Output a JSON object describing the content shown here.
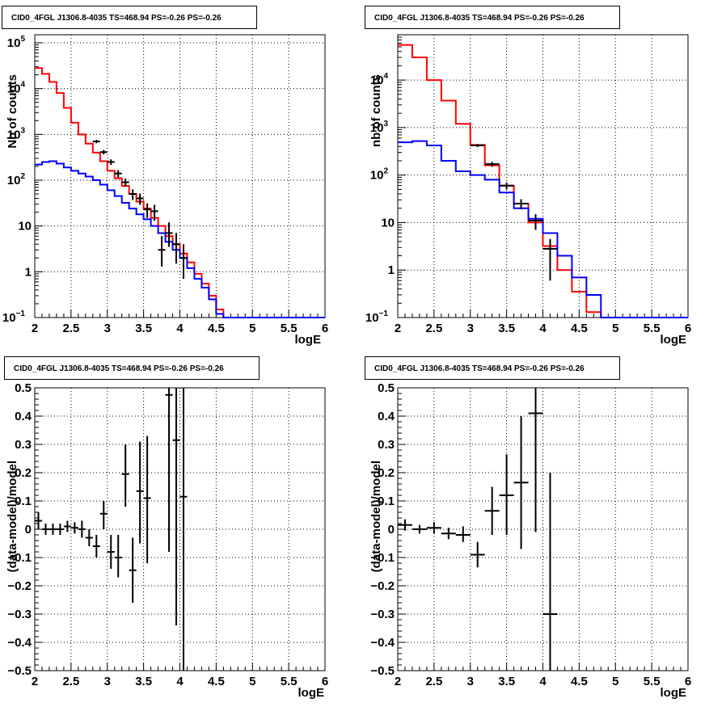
{
  "chart_data": [
    {
      "type": "line",
      "title": "CID0_4FGL J1306.8-4035 TS=468.94 PS=-0.26 PS=-0.26",
      "xlabel": "logE",
      "ylabel": "Nb of counts",
      "xlim": [
        2,
        6
      ],
      "ylim": [
        0.1,
        150000
      ],
      "yscale": "log",
      "grid": true,
      "x_ticks": [
        "2",
        "2.5",
        "3",
        "3.5",
        "4",
        "4.5",
        "5",
        "5.5",
        "6"
      ],
      "y_ticks": [
        {
          "value": 0.1,
          "label": "10",
          "sup": "−1"
        },
        {
          "value": 1,
          "label": "1"
        },
        {
          "value": 10,
          "label": "10"
        },
        {
          "value": 100,
          "label": "10",
          "sup": "2"
        },
        {
          "value": 1000,
          "label": "10",
          "sup": "3"
        },
        {
          "value": 10000,
          "label": "10",
          "sup": "4"
        },
        {
          "value": 100000,
          "label": "10",
          "sup": "5"
        }
      ],
      "series": [
        {
          "color": "#ff0000",
          "kind": "step",
          "bin_edges": [
            2.0,
            2.1,
            2.2,
            2.3,
            2.4,
            2.5,
            2.6,
            2.7,
            2.8,
            2.9,
            3.0,
            3.1,
            3.2,
            3.3,
            3.4,
            3.5,
            3.6,
            3.7,
            3.8,
            3.9,
            4.0,
            4.1,
            4.2,
            4.3,
            4.4,
            4.5,
            4.6,
            4.7,
            4.8,
            4.9,
            5.0,
            5.1,
            5.2,
            5.3,
            5.4,
            5.5,
            5.6,
            5.7,
            5.8,
            5.9,
            6.0
          ],
          "values": [
            28000,
            21000,
            14000,
            8000,
            3800,
            1800,
            1000,
            630,
            400,
            260,
            160,
            110,
            75,
            50,
            34,
            24,
            15,
            10,
            6,
            4,
            2.5,
            1.6,
            0.9,
            0.55,
            0.3,
            0.15,
            0.1,
            0.1,
            0.1,
            0.1,
            0.1,
            0.1,
            0.1,
            0.1,
            0.1,
            0.1,
            0.1,
            0.1,
            0.1,
            0.1
          ]
        },
        {
          "color": "#0000ff",
          "kind": "step",
          "bin_edges": [
            2.0,
            2.1,
            2.2,
            2.3,
            2.4,
            2.5,
            2.6,
            2.7,
            2.8,
            2.9,
            3.0,
            3.1,
            3.2,
            3.3,
            3.4,
            3.5,
            3.6,
            3.7,
            3.8,
            3.9,
            4.0,
            4.1,
            4.2,
            4.3,
            4.4,
            4.5,
            4.6,
            4.7,
            4.8,
            4.9,
            5.0,
            5.1,
            5.2,
            5.3,
            5.4,
            5.5,
            5.6,
            5.7,
            5.8,
            5.9,
            6.0
          ],
          "values": [
            220,
            250,
            260,
            230,
            190,
            160,
            140,
            120,
            100,
            80,
            60,
            45,
            32,
            24,
            18,
            14,
            10,
            7,
            4.5,
            3,
            2,
            1.2,
            0.7,
            0.45,
            0.25,
            0.12,
            0.1,
            0.1,
            0.1,
            0.1,
            0.1,
            0.1,
            0.1,
            0.1,
            0.1,
            0.1,
            0.1,
            0.1,
            0.1,
            0.1
          ]
        },
        {
          "color": "#000000",
          "kind": "errorbar",
          "points": [
            {
              "x": 2.85,
              "xerr": 0.05,
              "y": 700,
              "ylo": 640,
              "yhi": 760
            },
            {
              "x": 2.95,
              "xerr": 0.05,
              "y": 410,
              "ylo": 365,
              "yhi": 455
            },
            {
              "x": 3.05,
              "xerr": 0.05,
              "y": 250,
              "ylo": 215,
              "yhi": 285
            },
            {
              "x": 3.15,
              "xerr": 0.05,
              "y": 140,
              "ylo": 115,
              "yhi": 165
            },
            {
              "x": 3.25,
              "xerr": 0.05,
              "y": 90,
              "ylo": 72,
              "yhi": 108
            },
            {
              "x": 3.35,
              "xerr": 0.05,
              "y": 50,
              "ylo": 37,
              "yhi": 63
            },
            {
              "x": 3.45,
              "xerr": 0.05,
              "y": 40,
              "ylo": 29,
              "yhi": 51
            },
            {
              "x": 3.55,
              "xerr": 0.05,
              "y": 23,
              "ylo": 15,
              "yhi": 31
            },
            {
              "x": 3.65,
              "xerr": 0.05,
              "y": 21,
              "ylo": 13,
              "yhi": 29
            },
            {
              "x": 3.75,
              "xerr": 0.05,
              "y": 3,
              "ylo": 1.3,
              "yhi": 6
            },
            {
              "x": 3.85,
              "xerr": 0.05,
              "y": 7,
              "ylo": 3.5,
              "yhi": 12
            },
            {
              "x": 3.95,
              "xerr": 0.05,
              "y": 4,
              "ylo": 1.5,
              "yhi": 7
            },
            {
              "x": 4.05,
              "xerr": 0.05,
              "y": 2,
              "ylo": 0.7,
              "yhi": 4
            }
          ]
        }
      ]
    },
    {
      "type": "line",
      "title": "CID0_4FGL J1306.8-4035 TS=468.94 PS=-0.26 PS=-0.26",
      "xlabel": "logE",
      "ylabel": "nb of counts",
      "xlim": [
        2,
        6
      ],
      "ylim": [
        0.1,
        90000
      ],
      "yscale": "log",
      "grid": true,
      "x_ticks": [
        "2",
        "2.5",
        "3",
        "3.5",
        "4",
        "4.5",
        "5",
        "5.5",
        "6"
      ],
      "y_ticks": [
        {
          "value": 0.1,
          "label": "10",
          "sup": "−1"
        },
        {
          "value": 1,
          "label": "1"
        },
        {
          "value": 10,
          "label": "10"
        },
        {
          "value": 100,
          "label": "10",
          "sup": "2"
        },
        {
          "value": 1000,
          "label": "10",
          "sup": "3"
        },
        {
          "value": 10000,
          "label": "10",
          "sup": "4"
        }
      ],
      "series": [
        {
          "color": "#ff0000",
          "kind": "step",
          "bin_edges": [
            2.0,
            2.2,
            2.4,
            2.6,
            2.8,
            3.0,
            3.2,
            3.4,
            3.6,
            3.8,
            4.0,
            4.2,
            4.4,
            4.6,
            4.8,
            5.0,
            5.2,
            5.4,
            5.6,
            5.8,
            6.0
          ],
          "values": [
            55000,
            30000,
            10000,
            3700,
            1200,
            430,
            160,
            60,
            25,
            10,
            3.2,
            1.0,
            0.35,
            0.13,
            0.1,
            0.1,
            0.1,
            0.1,
            0.1,
            0.1
          ]
        },
        {
          "color": "#0000ff",
          "kind": "step",
          "bin_edges": [
            2.0,
            2.2,
            2.4,
            2.6,
            2.8,
            3.0,
            3.2,
            3.4,
            3.6,
            3.8,
            4.0,
            4.2,
            4.4,
            4.6,
            4.8,
            5.0,
            5.2,
            5.4,
            5.6,
            5.8,
            6.0
          ],
          "values": [
            490,
            520,
            420,
            200,
            120,
            100,
            80,
            43,
            20,
            12,
            6,
            2,
            0.7,
            0.3,
            0.1,
            0.1,
            0.1,
            0.1,
            0.1,
            0.1
          ]
        },
        {
          "color": "#000000",
          "kind": "errorbar",
          "points": [
            {
              "x": 3.1,
              "xerr": 0.1,
              "y": 420,
              "ylo": 390,
              "yhi": 450
            },
            {
              "x": 3.3,
              "xerr": 0.1,
              "y": 170,
              "ylo": 150,
              "yhi": 190
            },
            {
              "x": 3.5,
              "xerr": 0.1,
              "y": 60,
              "ylo": 50,
              "yhi": 70
            },
            {
              "x": 3.7,
              "xerr": 0.1,
              "y": 25,
              "ylo": 19,
              "yhi": 31
            },
            {
              "x": 3.9,
              "xerr": 0.1,
              "y": 11,
              "ylo": 7,
              "yhi": 15
            },
            {
              "x": 4.1,
              "xerr": 0.1,
              "y": 2.8,
              "ylo": 0.6,
              "yhi": 4.5
            }
          ]
        }
      ]
    },
    {
      "type": "scatter",
      "title": "CID0_4FGL J1306.8-4035 TS=468.94 PS=-0.26 PS=-0.26",
      "xlabel": "logE",
      "ylabel": "(data-model)/model",
      "xlim": [
        2,
        6
      ],
      "ylim": [
        -0.5,
        0.5
      ],
      "yscale": "linear",
      "grid": true,
      "x_ticks": [
        "2",
        "2.5",
        "3",
        "3.5",
        "4",
        "4.5",
        "5",
        "5.5",
        "6"
      ],
      "y_ticks": [
        {
          "value": -0.5,
          "label": "−0.5"
        },
        {
          "value": -0.4,
          "label": "−0.4"
        },
        {
          "value": -0.3,
          "label": "−0.3"
        },
        {
          "value": -0.2,
          "label": "−0.2"
        },
        {
          "value": -0.1,
          "label": "−0.1"
        },
        {
          "value": 0,
          "label": "0"
        },
        {
          "value": 0.1,
          "label": "0.1"
        },
        {
          "value": 0.2,
          "label": "0.2"
        },
        {
          "value": 0.3,
          "label": "0.3"
        },
        {
          "value": 0.4,
          "label": "0.4"
        },
        {
          "value": 0.5,
          "label": "0.5"
        }
      ],
      "series": [
        {
          "color": "#000000",
          "kind": "errorbar",
          "points": [
            {
              "x": 2.05,
              "xerr": 0.05,
              "y": 0.03,
              "ylo": 0.0,
              "yhi": 0.06
            },
            {
              "x": 2.15,
              "xerr": 0.05,
              "y": 0.0,
              "ylo": -0.02,
              "yhi": 0.02
            },
            {
              "x": 2.25,
              "xerr": 0.05,
              "y": 0.0,
              "ylo": -0.02,
              "yhi": 0.02
            },
            {
              "x": 2.35,
              "xerr": 0.05,
              "y": 0.0,
              "ylo": -0.02,
              "yhi": 0.02
            },
            {
              "x": 2.45,
              "xerr": 0.05,
              "y": 0.01,
              "ylo": -0.01,
              "yhi": 0.03
            },
            {
              "x": 2.55,
              "xerr": 0.05,
              "y": 0.005,
              "ylo": -0.015,
              "yhi": 0.025
            },
            {
              "x": 2.65,
              "xerr": 0.05,
              "y": 0.0,
              "ylo": -0.03,
              "yhi": 0.03
            },
            {
              "x": 2.75,
              "xerr": 0.05,
              "y": -0.03,
              "ylo": -0.06,
              "yhi": 0.0
            },
            {
              "x": 2.85,
              "xerr": 0.05,
              "y": -0.06,
              "ylo": -0.1,
              "yhi": -0.02
            },
            {
              "x": 2.95,
              "xerr": 0.05,
              "y": 0.055,
              "ylo": 0.0,
              "yhi": 0.1
            },
            {
              "x": 3.05,
              "xerr": 0.05,
              "y": -0.08,
              "ylo": -0.14,
              "yhi": -0.02
            },
            {
              "x": 3.15,
              "xerr": 0.05,
              "y": -0.1,
              "ylo": -0.17,
              "yhi": -0.02
            },
            {
              "x": 3.25,
              "xerr": 0.05,
              "y": 0.195,
              "ylo": 0.08,
              "yhi": 0.3
            },
            {
              "x": 3.35,
              "xerr": 0.05,
              "y": -0.145,
              "ylo": -0.26,
              "yhi": -0.03
            },
            {
              "x": 3.45,
              "xerr": 0.05,
              "y": 0.135,
              "ylo": -0.05,
              "yhi": 0.31
            },
            {
              "x": 3.55,
              "xerr": 0.05,
              "y": 0.11,
              "ylo": -0.12,
              "yhi": 0.33
            },
            {
              "x": 3.85,
              "xerr": 0.05,
              "y": 0.475,
              "ylo": -0.08,
              "yhi": 0.5
            },
            {
              "x": 3.95,
              "xerr": 0.05,
              "y": 0.315,
              "ylo": -0.34,
              "yhi": 0.5
            },
            {
              "x": 4.05,
              "xerr": 0.05,
              "y": 0.115,
              "ylo": -0.5,
              "yhi": 0.5
            }
          ]
        }
      ]
    },
    {
      "type": "scatter",
      "title": "CID0_4FGL J1306.8-4035 TS=468.94 PS=-0.26 PS=-0.26",
      "xlabel": "logE",
      "ylabel": "(data-model)/model",
      "xlim": [
        2,
        6
      ],
      "ylim": [
        -0.5,
        0.5
      ],
      "yscale": "linear",
      "grid": true,
      "x_ticks": [
        "2",
        "2.5",
        "3",
        "3.5",
        "4",
        "4.5",
        "5",
        "5.5",
        "6"
      ],
      "y_ticks": [
        {
          "value": -0.5,
          "label": "−0.5"
        },
        {
          "value": -0.4,
          "label": "−0.4"
        },
        {
          "value": -0.3,
          "label": "−0.3"
        },
        {
          "value": -0.2,
          "label": "−0.2"
        },
        {
          "value": -0.1,
          "label": "−0.1"
        },
        {
          "value": 0,
          "label": "0"
        },
        {
          "value": 0.1,
          "label": "0.1"
        },
        {
          "value": 0.2,
          "label": "0.2"
        },
        {
          "value": 0.3,
          "label": "0.3"
        },
        {
          "value": 0.4,
          "label": "0.4"
        },
        {
          "value": 0.5,
          "label": "0.5"
        }
      ],
      "series": [
        {
          "color": "#000000",
          "kind": "errorbar",
          "points": [
            {
              "x": 2.1,
              "xerr": 0.1,
              "y": 0.015,
              "ylo": -0.005,
              "yhi": 0.035
            },
            {
              "x": 2.3,
              "xerr": 0.1,
              "y": 0.0,
              "ylo": -0.015,
              "yhi": 0.015
            },
            {
              "x": 2.5,
              "xerr": 0.1,
              "y": 0.005,
              "ylo": -0.015,
              "yhi": 0.025
            },
            {
              "x": 2.7,
              "xerr": 0.1,
              "y": -0.015,
              "ylo": -0.035,
              "yhi": 0.005
            },
            {
              "x": 2.9,
              "xerr": 0.1,
              "y": -0.02,
              "ylo": -0.045,
              "yhi": 0.01
            },
            {
              "x": 3.1,
              "xerr": 0.1,
              "y": -0.09,
              "ylo": -0.135,
              "yhi": -0.045
            },
            {
              "x": 3.3,
              "xerr": 0.1,
              "y": 0.065,
              "ylo": -0.02,
              "yhi": 0.15
            },
            {
              "x": 3.5,
              "xerr": 0.1,
              "y": 0.12,
              "ylo": -0.02,
              "yhi": 0.265
            },
            {
              "x": 3.7,
              "xerr": 0.1,
              "y": 0.165,
              "ylo": -0.07,
              "yhi": 0.4
            },
            {
              "x": 3.9,
              "xerr": 0.1,
              "y": 0.41,
              "ylo": -0.01,
              "yhi": 0.5
            },
            {
              "x": 4.1,
              "xerr": 0.1,
              "y": -0.3,
              "ylo": -0.5,
              "yhi": 0.2
            }
          ]
        }
      ]
    }
  ]
}
